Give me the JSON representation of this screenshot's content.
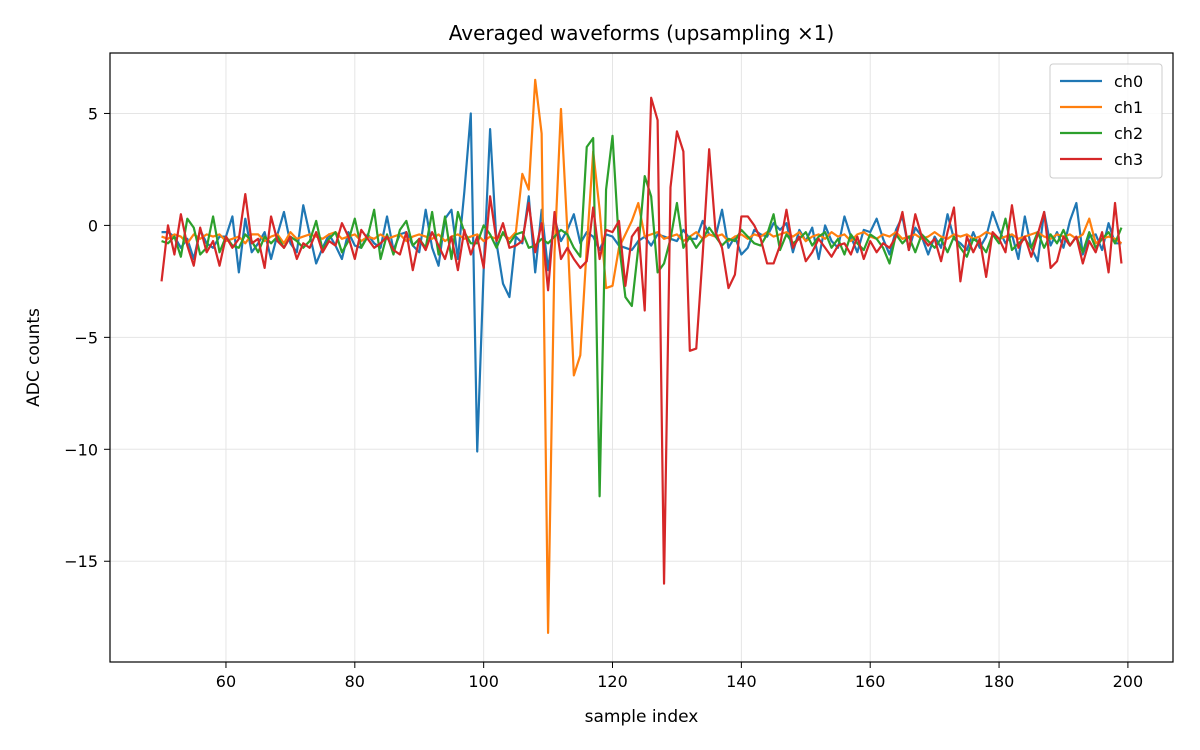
{
  "chart_data": {
    "type": "line",
    "title": "Averaged waveforms (upsampling ×1)",
    "xlabel": "sample index",
    "ylabel": "ADC counts",
    "xlim": [
      42,
      207
    ],
    "ylim": [
      -19.5,
      7.7
    ],
    "xticks": [
      60,
      80,
      100,
      120,
      140,
      160,
      180,
      200
    ],
    "yticks": [
      5,
      0,
      -5,
      -10,
      -15
    ],
    "ytick_labels": [
      "5",
      "0",
      "−5",
      "−10",
      "−15"
    ],
    "grid": true,
    "legend_position": "top-right",
    "x_start": 50,
    "series": [
      {
        "name": "ch0",
        "color": "#1f77b4",
        "values": [
          -0.3,
          -0.3,
          -0.5,
          -1.0,
          -0.6,
          -1.5,
          -0.2,
          -0.8,
          -1.0,
          -0.5,
          -0.5,
          0.4,
          -2.1,
          0.3,
          -1.2,
          -0.8,
          -0.3,
          -1.5,
          -0.4,
          0.6,
          -0.8,
          -1.2,
          0.9,
          -0.4,
          -1.7,
          -1.0,
          -0.4,
          -0.9,
          -1.5,
          -0.3,
          -0.9,
          -1.0,
          -0.4,
          -0.8,
          -1.0,
          0.4,
          -1.1,
          -0.4,
          -0.3,
          -0.9,
          -1.2,
          0.7,
          -1.0,
          -1.8,
          0.3,
          0.7,
          -1.5,
          1.5,
          5.0,
          -10.1,
          -2.0,
          4.3,
          -0.8,
          -2.6,
          -3.2,
          -0.5,
          -0.8,
          1.3,
          -2.1,
          0.7,
          -2.0,
          0.3,
          -0.7,
          -0.2,
          0.5,
          -0.8,
          -0.3,
          -0.5,
          -1.1,
          -0.4,
          -0.5,
          -0.9,
          -1.0,
          -1.1,
          -0.7,
          -0.5,
          -0.9,
          -0.4,
          -0.5,
          -0.6,
          -0.7,
          -0.2,
          -0.6,
          -0.6,
          0.2,
          -0.4,
          -0.5,
          0.7,
          -1.0,
          -0.5,
          -1.3,
          -1.0,
          -0.2,
          -0.4,
          -0.5,
          0.1,
          -0.2,
          0.1,
          -1.2,
          -0.2,
          -0.7,
          -0.1,
          -1.5,
          0.0,
          -0.7,
          -1.0,
          0.4,
          -0.5,
          -1.2,
          -0.2,
          -0.3,
          0.3,
          -0.6,
          -1.3,
          -0.2,
          0.4,
          -1.1,
          -0.1,
          -0.5,
          -1.3,
          -0.5,
          -1.0,
          0.5,
          -0.6,
          -0.8,
          -1.1,
          -0.3,
          -1.0,
          -0.5,
          0.6,
          -0.2,
          -0.8,
          -0.4,
          -1.5,
          0.4,
          -1.0,
          -1.6,
          0.6,
          -0.9,
          -0.3,
          -1.0,
          0.2,
          1.0,
          -1.3,
          -0.5,
          -0.4,
          -1.1,
          0.1,
          -0.8,
          -0.8
        ]
      },
      {
        "name": "ch1",
        "color": "#ff7f0e",
        "values": [
          -0.5,
          -0.6,
          -0.4,
          -0.5,
          -0.8,
          -0.4,
          -0.6,
          -0.4,
          -0.5,
          -0.4,
          -0.7,
          -0.6,
          -0.5,
          -0.8,
          -0.4,
          -0.4,
          -0.7,
          -0.5,
          -0.4,
          -0.8,
          -0.3,
          -0.6,
          -0.5,
          -0.4,
          -0.5,
          -0.6,
          -0.4,
          -0.3,
          -0.6,
          -0.5,
          -0.4,
          -0.7,
          -0.5,
          -0.6,
          -0.4,
          -0.6,
          -0.5,
          -0.4,
          -0.7,
          -0.5,
          -0.4,
          -0.5,
          -0.6,
          -0.4,
          -0.7,
          -0.5,
          -0.4,
          -0.6,
          -0.5,
          -0.4,
          -0.7,
          -0.5,
          -0.6,
          -0.4,
          -0.6,
          -0.3,
          2.3,
          1.6,
          6.5,
          4.1,
          -18.2,
          -1.2,
          5.2,
          -0.3,
          -6.7,
          -5.8,
          -1.0,
          3.3,
          0.7,
          -2.8,
          -2.7,
          -1.0,
          -0.4,
          0.2,
          1.0,
          -0.5,
          -0.4,
          -0.3,
          -0.6,
          -0.5,
          -0.4,
          -0.7,
          -0.5,
          -0.3,
          -0.6,
          -0.4,
          -0.5,
          -0.4,
          -0.7,
          -0.5,
          -0.4,
          -0.6,
          -0.4,
          -0.5,
          -0.3,
          -0.5,
          -0.4,
          -0.3,
          -0.5,
          -0.3,
          -0.7,
          -0.5,
          -0.4,
          -0.6,
          -0.3,
          -0.5,
          -0.4,
          -0.7,
          -0.4,
          -0.3,
          -0.5,
          -0.6,
          -0.4,
          -0.5,
          -0.3,
          -0.6,
          -0.5,
          -0.4,
          -0.6,
          -0.5,
          -0.3,
          -0.5,
          -0.6,
          -0.4,
          -0.5,
          -0.4,
          -0.6,
          -0.5,
          -0.3,
          -0.4,
          -0.6,
          -0.5,
          -0.4,
          -0.6,
          -0.5,
          -0.4,
          -0.3,
          -0.5,
          -0.6,
          -0.4,
          -0.5,
          -0.4,
          -0.6,
          -0.4,
          0.3,
          -0.8,
          -0.6,
          -0.5,
          -0.6,
          -0.8
        ]
      },
      {
        "name": "ch2",
        "color": "#2ca02c",
        "values": [
          -0.7,
          -0.8,
          -0.5,
          -1.4,
          0.3,
          -0.1,
          -1.3,
          -1.0,
          0.4,
          -1.2,
          -0.5,
          -0.9,
          -1.0,
          -0.4,
          -0.7,
          -1.2,
          -0.5,
          -0.8,
          -0.5,
          -1.0,
          -0.5,
          -0.7,
          -1.0,
          -0.7,
          0.2,
          -1.1,
          -0.6,
          -0.3,
          -1.2,
          -0.7,
          0.3,
          -1.0,
          -0.5,
          0.7,
          -1.5,
          -0.4,
          -1.3,
          -0.2,
          0.2,
          -0.9,
          -0.6,
          -1.0,
          0.6,
          -1.3,
          0.4,
          -1.5,
          0.6,
          -0.3,
          -0.8,
          -0.8,
          0.0,
          -0.4,
          -1.0,
          -0.3,
          -0.8,
          -0.4,
          -0.3,
          -1.0,
          -0.9,
          -0.6,
          -0.8,
          -0.5,
          -0.2,
          -0.4,
          -1.0,
          -1.4,
          3.5,
          3.9,
          -12.1,
          1.6,
          4.0,
          -0.8,
          -3.2,
          -3.6,
          -1.0,
          2.2,
          1.3,
          -2.1,
          -1.7,
          -0.6,
          1.0,
          -1.0,
          -0.5,
          -1.0,
          -0.6,
          -0.1,
          -0.5,
          -0.9,
          -0.6,
          -0.7,
          -0.2,
          -0.5,
          -0.8,
          -0.9,
          -0.4,
          0.5,
          -1.1,
          -0.4,
          -0.8,
          -0.6,
          -0.3,
          -0.9,
          -0.5,
          -0.3,
          -1.0,
          -0.6,
          -1.3,
          -0.4,
          -0.8,
          -1.1,
          -0.4,
          -0.6,
          -1.0,
          -1.7,
          -0.4,
          -0.8,
          -0.5,
          -1.2,
          -0.4,
          -0.7,
          -1.0,
          -0.6,
          -1.2,
          -0.5,
          -1.0,
          -1.4,
          -0.6,
          -0.8,
          -1.2,
          -0.4,
          -0.8,
          0.3,
          -1.1,
          -0.8,
          -0.6,
          -1.0,
          -0.3,
          -1.0,
          -0.4,
          -0.8,
          -0.2,
          -0.9,
          -0.5,
          -1.2,
          -0.3,
          -1.0,
          -0.6,
          -0.3,
          -0.8,
          -0.1
        ]
      },
      {
        "name": "ch3",
        "color": "#d62728",
        "values": [
          -2.5,
          0.0,
          -1.3,
          0.5,
          -0.9,
          -1.8,
          -0.1,
          -1.2,
          -0.7,
          -1.8,
          -0.5,
          -1.0,
          -0.6,
          1.4,
          -0.8,
          -0.6,
          -1.9,
          0.4,
          -0.7,
          -1.0,
          -0.5,
          -1.5,
          -0.8,
          -1.0,
          -0.3,
          -1.2,
          -0.7,
          -0.9,
          0.1,
          -0.5,
          -1.5,
          -0.2,
          -0.6,
          -1.0,
          -0.8,
          -0.5,
          -1.1,
          -1.3,
          -0.3,
          -2.0,
          -0.6,
          -1.1,
          -0.3,
          -0.9,
          -1.5,
          -0.5,
          -2.0,
          -0.2,
          -1.3,
          -0.5,
          -1.9,
          1.3,
          -0.7,
          0.1,
          -1.0,
          -0.9,
          -0.7,
          1.0,
          -1.2,
          0.1,
          -2.9,
          0.6,
          -1.5,
          -1.0,
          -1.5,
          -1.9,
          -1.6,
          0.8,
          -1.5,
          -0.2,
          -0.3,
          0.2,
          -2.7,
          -0.5,
          -0.1,
          -3.8,
          5.7,
          4.7,
          -16.0,
          1.7,
          4.2,
          3.3,
          -5.6,
          -5.5,
          -1.3,
          3.4,
          -0.3,
          -1.0,
          -2.8,
          -2.2,
          0.4,
          0.4,
          0.0,
          -0.6,
          -1.7,
          -1.7,
          -0.9,
          0.7,
          -1.0,
          -0.5,
          -1.6,
          -1.2,
          -0.6,
          -1.0,
          -1.4,
          -0.9,
          -0.8,
          -1.3,
          -0.5,
          -1.5,
          -0.7,
          -1.2,
          -0.8,
          -1.0,
          -0.5,
          0.6,
          -1.1,
          0.5,
          -0.5,
          -0.9,
          -0.6,
          -1.6,
          -0.3,
          0.8,
          -2.5,
          -0.5,
          -1.2,
          -0.6,
          -2.3,
          -0.3,
          -0.6,
          -1.2,
          0.9,
          -1.0,
          -0.5,
          -1.4,
          -0.4,
          0.6,
          -1.9,
          -1.6,
          -0.5,
          -0.9,
          -0.5,
          -1.7,
          -0.7,
          -1.2,
          -0.3,
          -2.1,
          1.0,
          -1.7
        ]
      }
    ]
  }
}
